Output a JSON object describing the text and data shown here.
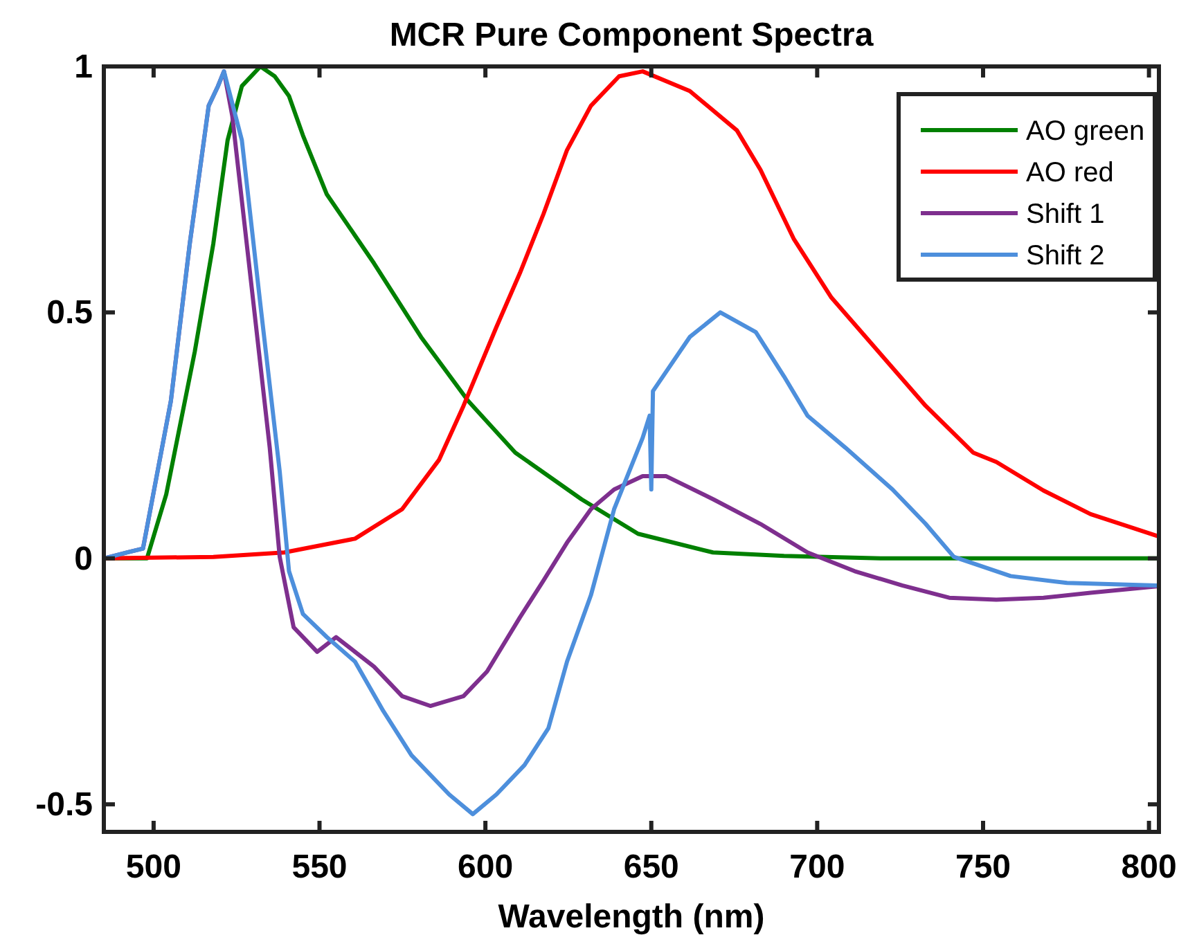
{
  "chart_data": {
    "type": "line",
    "title": "MCR Pure Component Spectra",
    "xlabel": "Wavelength (nm)",
    "xlim": [
      485,
      803
    ],
    "ylim": [
      -0.556,
      1.0
    ],
    "xticks": [
      500,
      550,
      600,
      650,
      700,
      750,
      800
    ],
    "yticks": [
      {
        "value": -0.5,
        "label": "-0.5"
      },
      0,
      0.5,
      1
    ],
    "legend": "top right",
    "grid": false,
    "line_style": "solid",
    "marker": "none",
    "series": [
      {
        "name": "AO green",
        "color": "#008000",
        "x": [
          485,
          498,
          503.8,
          512.4,
          518,
          522.3,
          526.6,
          532.2,
          536.5,
          540.8,
          545,
          552.2,
          566.4,
          580.6,
          594.8,
          609,
          629,
          646,
          668.6,
          690,
          720,
          760,
          803
        ],
        "values": [
          0,
          0,
          0.13,
          0.42,
          0.64,
          0.85,
          0.96,
          1.0,
          0.98,
          0.94,
          0.86,
          0.74,
          0.6,
          0.45,
          0.32,
          0.215,
          0.12,
          0.05,
          0.012,
          0.005,
          0,
          0,
          0
        ]
      },
      {
        "name": "AO red",
        "color": "#ff0000",
        "x": [
          485,
          518,
          539.4,
          560.7,
          574.9,
          586,
          593.4,
          603.3,
          610.4,
          617.5,
          624.6,
          631.8,
          640.3,
          647.4,
          661.6,
          675.8,
          682.9,
          692.9,
          704.3,
          718.5,
          732.7,
          747,
          754,
          768.2,
          782.4,
          802.3
        ],
        "values": [
          0,
          0.003,
          0.012,
          0.04,
          0.1,
          0.2,
          0.31,
          0.47,
          0.58,
          0.7,
          0.83,
          0.92,
          0.98,
          0.99,
          0.95,
          0.87,
          0.79,
          0.65,
          0.53,
          0.42,
          0.31,
          0.215,
          0.196,
          0.138,
          0.09,
          0.046
        ]
      },
      {
        "name": "Shift 1",
        "color": "#7e2f8e",
        "x": [
          485,
          492.5,
          496.8,
          499.6,
          505.2,
          510.9,
          516.6,
          519.4,
          521.2,
          523.7,
          529.4,
          535,
          538,
          542.2,
          549.3,
          555,
          566.4,
          574.9,
          583.4,
          593.4,
          600.5,
          610.4,
          617.5,
          624.6,
          631.8,
          638.8,
          647.4,
          654.5,
          668.7,
          682.9,
          697.1,
          711.3,
          725.6,
          739.8,
          754,
          768.2,
          782.4,
          802.3
        ],
        "values": [
          0,
          0.013,
          0.02,
          0.12,
          0.32,
          0.64,
          0.92,
          0.96,
          0.99,
          0.9,
          0.56,
          0.225,
          0.003,
          -0.14,
          -0.19,
          -0.16,
          -0.22,
          -0.28,
          -0.3,
          -0.28,
          -0.23,
          -0.12,
          -0.045,
          0.032,
          0.1,
          0.14,
          0.167,
          0.167,
          0.12,
          0.07,
          0.012,
          -0.026,
          -0.055,
          -0.08,
          -0.084,
          -0.08,
          -0.07,
          -0.057
        ]
      },
      {
        "name": "Shift 2",
        "color": "#4d8fdc",
        "x": [
          485,
          492.5,
          496.8,
          499.6,
          505.2,
          510.9,
          516.6,
          519.4,
          521.2,
          526.6,
          532.2,
          538,
          540.8,
          545,
          552.2,
          560.7,
          569.2,
          577.7,
          589.1,
          596.2,
          603.3,
          611.8,
          619,
          624.6,
          631.8,
          638.8,
          647.4,
          649.5,
          650,
          650.5,
          661.6,
          670.8,
          681.5,
          690,
          697.1,
          708.5,
          722.7,
          732.7,
          741.2,
          758.3,
          775.3,
          802.3
        ],
        "values": [
          0,
          0.013,
          0.02,
          0.12,
          0.32,
          0.64,
          0.92,
          0.96,
          0.99,
          0.85,
          0.515,
          0.177,
          -0.026,
          -0.113,
          -0.16,
          -0.21,
          -0.31,
          -0.4,
          -0.48,
          -0.52,
          -0.48,
          -0.42,
          -0.345,
          -0.21,
          -0.075,
          0.1,
          0.245,
          0.29,
          0.14,
          0.34,
          0.45,
          0.5,
          0.46,
          0.37,
          0.29,
          0.225,
          0.14,
          0.07,
          0.003,
          -0.036,
          -0.05,
          -0.055
        ]
      }
    ]
  }
}
